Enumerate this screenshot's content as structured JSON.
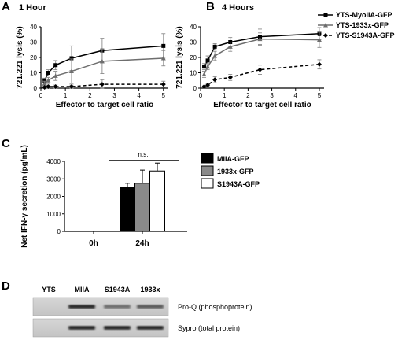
{
  "panels": {
    "a": {
      "letter": "A",
      "title": "1 Hour"
    },
    "b": {
      "letter": "B",
      "title": "4 Hours"
    },
    "c": {
      "letter": "C"
    },
    "d": {
      "letter": "D"
    }
  },
  "colors": {
    "myoiia": "#000000",
    "x1933": "#6e6e6e",
    "s1943a": "#000000",
    "bar_miia": "#000000",
    "bar_1933x": "#8a8a8a",
    "bar_s1943a": "#ffffff"
  },
  "chart_data": [
    {
      "type": "line",
      "panel": "A",
      "title": "1 Hour",
      "xlabel": "Effector to target cell ratio",
      "ylabel": "721.221 lysis (%)",
      "xlim": [
        0,
        5.2
      ],
      "ylim": [
        0,
        40
      ],
      "xticks": [
        "0",
        "1",
        "2",
        "3",
        "4",
        "5"
      ],
      "yticks": [
        "0",
        "10",
        "20",
        "30",
        "40"
      ],
      "x": [
        0.15,
        0.3,
        0.6,
        1.25,
        2.5,
        5
      ],
      "series": [
        {
          "name": "YTS-MyoIIA-GFP",
          "style": "solid-square",
          "values": [
            5,
            10,
            15,
            19.5,
            24.5,
            27.5
          ],
          "errors": [
            1.5,
            2,
            3,
            8,
            8,
            8
          ]
        },
        {
          "name": "YTS-1933x-GFP",
          "style": "solid-gray-triangle",
          "values": [
            3,
            5,
            8,
            11,
            17.5,
            19.5
          ],
          "errors": [
            1.5,
            2,
            3,
            8,
            8,
            5
          ]
        },
        {
          "name": "YTS-S1943A-GFP",
          "style": "dashed-diamond",
          "values": [
            0.5,
            1,
            1,
            1,
            2.5,
            2.5
          ],
          "errors": [
            0.5,
            1,
            1,
            1,
            3,
            2
          ]
        }
      ]
    },
    {
      "type": "line",
      "panel": "B",
      "title": "4 Hours",
      "xlabel": "Effector to target cell ratio",
      "ylabel": "721.221 lysis (%)",
      "xlim": [
        0,
        5.2
      ],
      "ylim": [
        0,
        40
      ],
      "xticks": [
        "0",
        "1",
        "2",
        "3",
        "4",
        "5"
      ],
      "yticks": [
        "0",
        "10",
        "20",
        "30",
        "40"
      ],
      "legend_position": "top-right",
      "x": [
        0.15,
        0.3,
        0.6,
        1.25,
        2.5,
        5
      ],
      "series": [
        {
          "name": "YTS-MyoIIA-GFP",
          "style": "solid-square",
          "values": [
            14,
            18,
            27,
            30,
            33.5,
            35.5
          ],
          "errors": [
            2,
            3,
            2,
            3,
            5,
            4
          ]
        },
        {
          "name": "YTS-1933x-GFP",
          "style": "solid-gray-triangle",
          "values": [
            9,
            14,
            21,
            27,
            32,
            31.5
          ],
          "errors": [
            2,
            2,
            3,
            3,
            4,
            5
          ]
        },
        {
          "name": "YTS-S1943A-GFP",
          "style": "dashed-diamond",
          "values": [
            1,
            2,
            5.5,
            7,
            12,
            15.5
          ],
          "errors": [
            0.5,
            1,
            2,
            2,
            3,
            3
          ]
        }
      ]
    },
    {
      "type": "bar",
      "panel": "C",
      "ylabel": "Net IFN-γ secretion (pg/mL)",
      "categories": [
        "0h",
        "24h"
      ],
      "ylim": [
        0,
        4000
      ],
      "yticks": [
        "0",
        "1000",
        "2000",
        "3000",
        "4000"
      ],
      "series": [
        {
          "name": "MIIA-GFP",
          "values": [
            0,
            2500
          ],
          "errors": [
            0,
            250
          ]
        },
        {
          "name": "1933x-GFP",
          "values": [
            0,
            2750
          ],
          "errors": [
            0,
            750
          ]
        },
        {
          "name": "S1943A-GFP",
          "values": [
            0,
            3450
          ],
          "errors": [
            0,
            450
          ]
        }
      ],
      "annotation": "n.s."
    }
  ],
  "blot": {
    "lanes": [
      "YTS",
      "MIIA",
      "S1943A",
      "1933x"
    ],
    "rows": [
      {
        "label": "Pro-Q (phosphoprotein)",
        "intensities": [
          0,
          0.9,
          0.55,
          0.65
        ]
      },
      {
        "label": "Sypro (total protein)",
        "intensities": [
          0,
          0.9,
          0.9,
          0.9
        ]
      }
    ]
  }
}
